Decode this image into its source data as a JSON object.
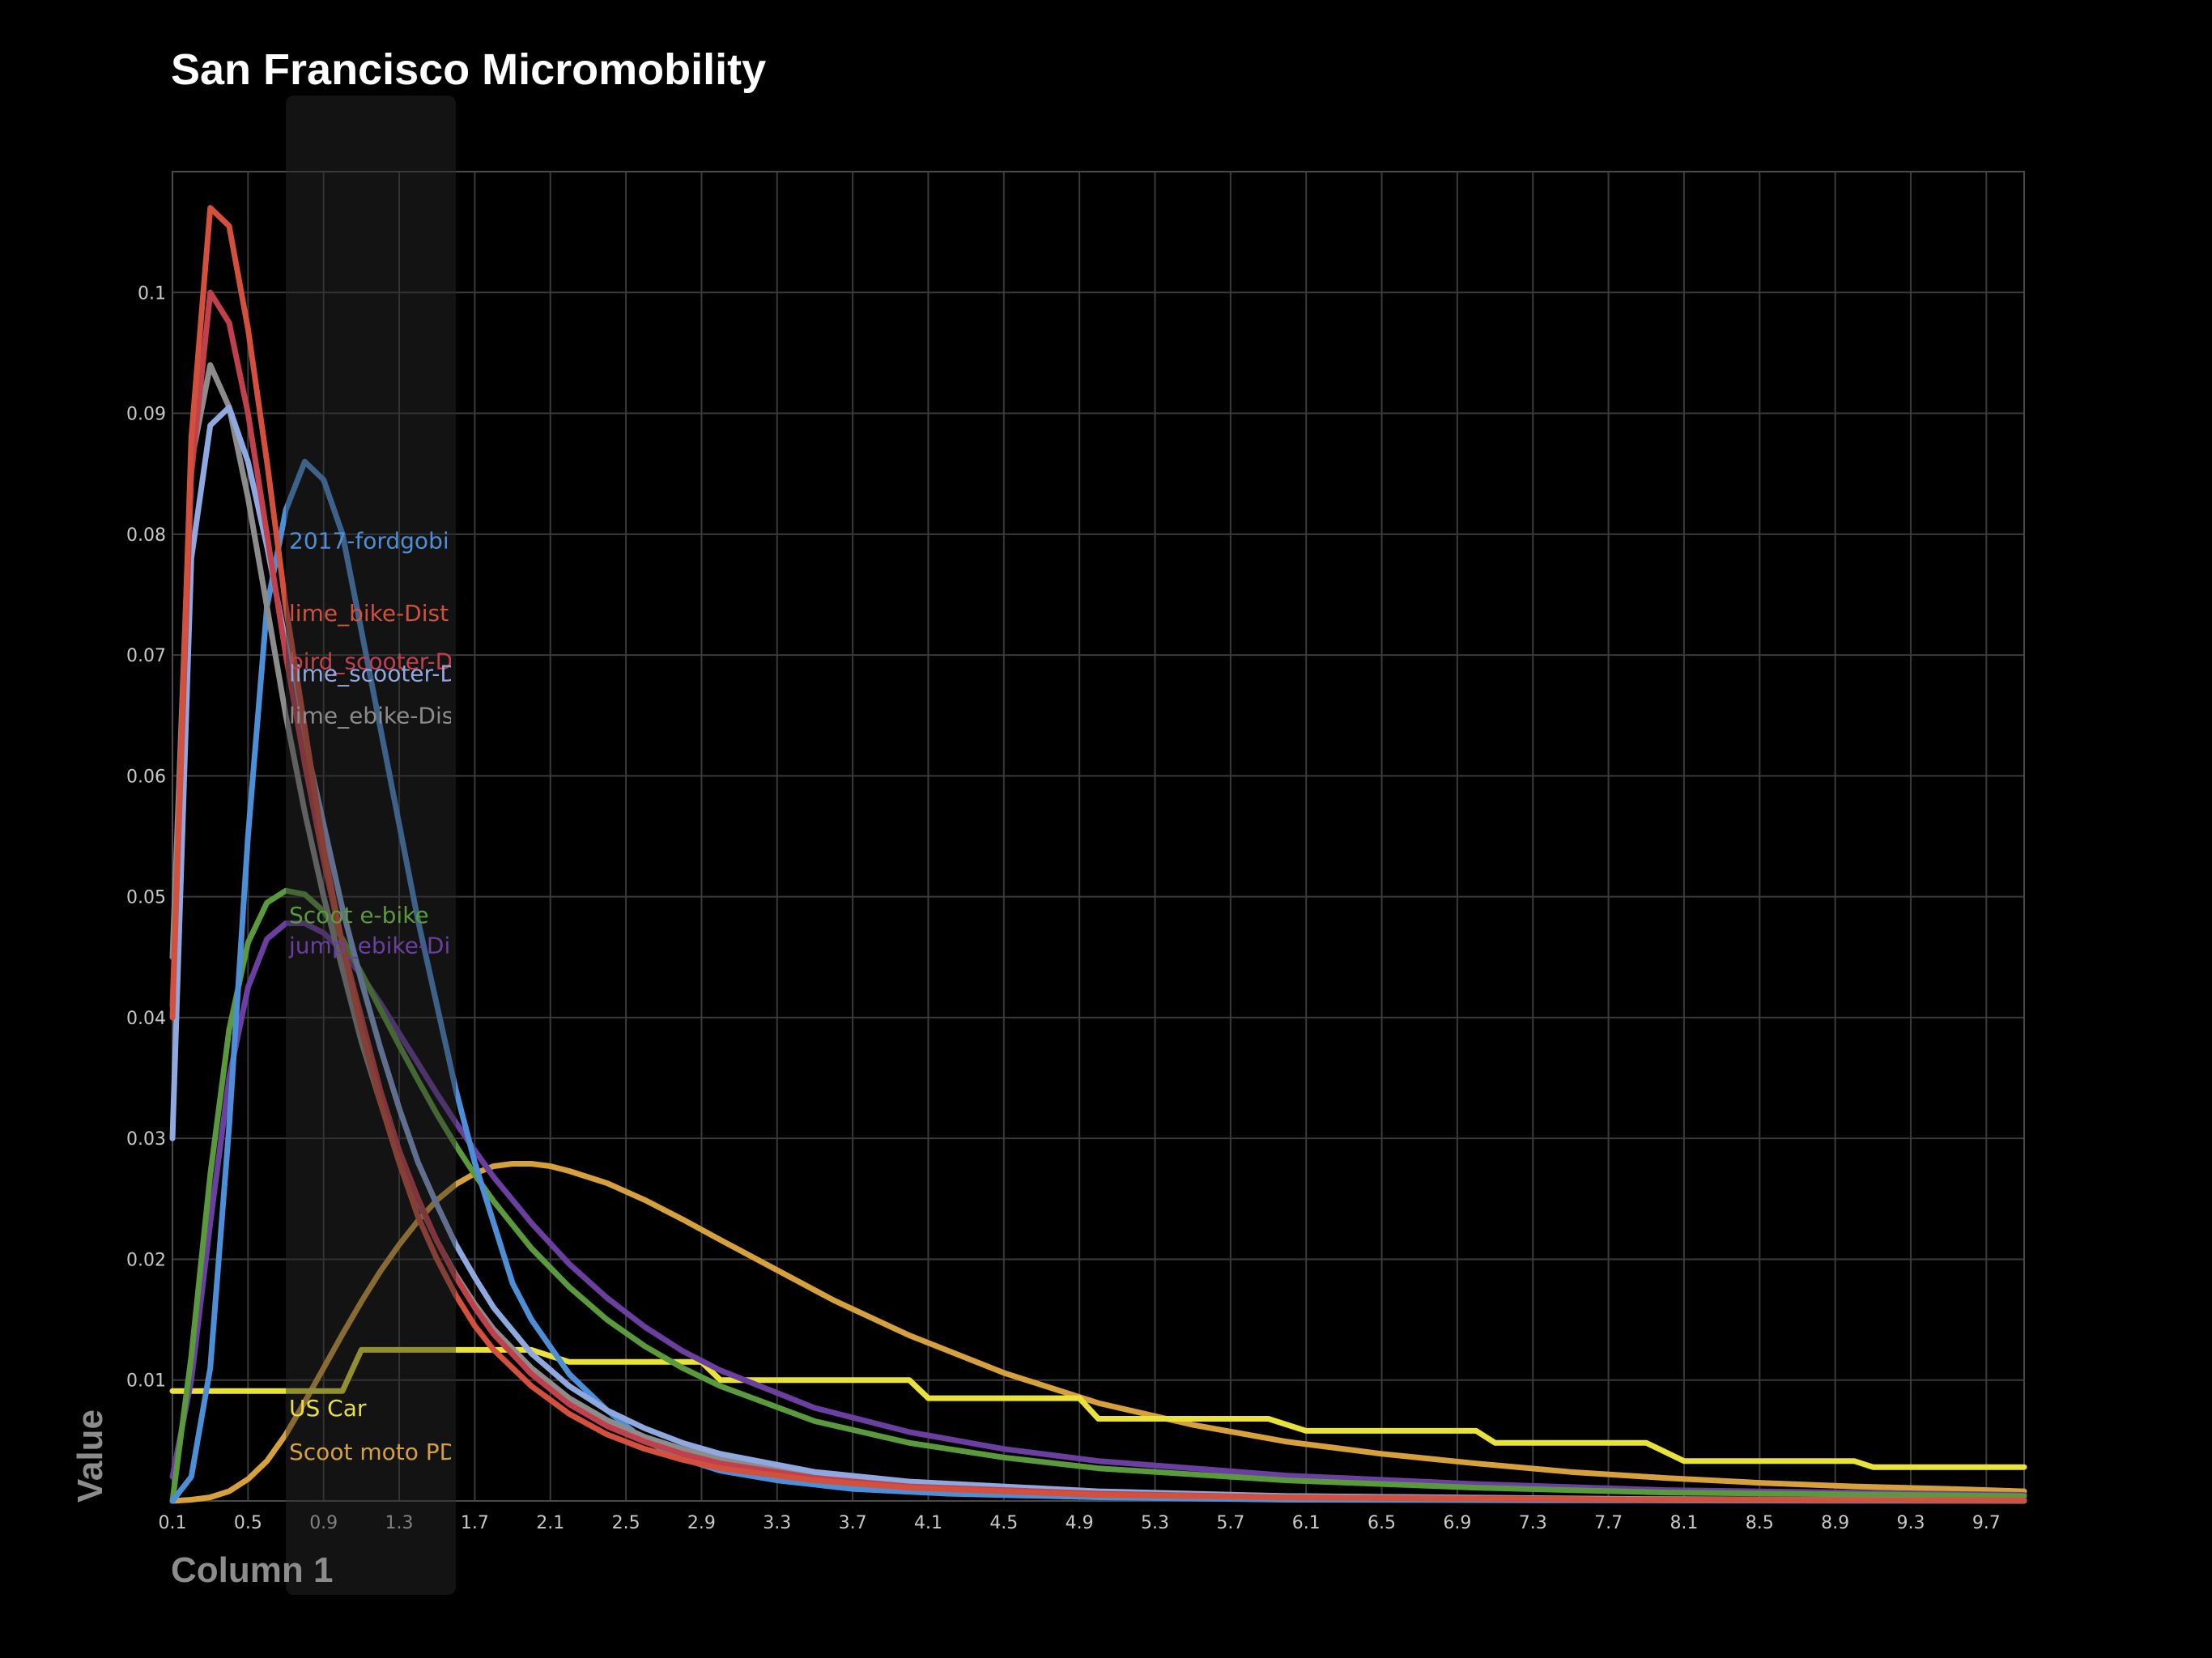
{
  "chart_data": {
    "type": "line",
    "title": "San Francisco Micromobility",
    "xlabel": "Column 1",
    "ylabel": "Value",
    "xlim": [
      0.1,
      9.9
    ],
    "ylim": [
      0,
      0.11
    ],
    "x_ticks": [
      "0.1",
      "0.5",
      "0.9",
      "1.3",
      "1.7",
      "2.1",
      "2.5",
      "2.9",
      "3.3",
      "3.7",
      "4.1",
      "4.5",
      "4.9",
      "5.3",
      "5.7",
      "6.1",
      "6.5",
      "6.9",
      "7.3",
      "7.7",
      "8.1",
      "8.5",
      "8.9",
      "9.3",
      "9.7"
    ],
    "y_ticks": [
      "0.01",
      "0.02",
      "0.03",
      "0.04",
      "0.05",
      "0.06",
      "0.07",
      "0.08",
      "0.09",
      "0.1"
    ],
    "grid": true,
    "hover_band": {
      "x_start": 0.7,
      "x_end": 1.6
    },
    "series": [
      {
        "name": "2017-fordgobi",
        "label_text": "2017-fordgobi",
        "color": "#4d8fd6",
        "label_y": 0.0795,
        "points": [
          [
            0.1,
            0.0
          ],
          [
            0.2,
            0.002
          ],
          [
            0.3,
            0.011
          ],
          [
            0.4,
            0.031
          ],
          [
            0.5,
            0.055
          ],
          [
            0.6,
            0.074
          ],
          [
            0.7,
            0.082
          ],
          [
            0.8,
            0.086
          ],
          [
            0.9,
            0.0845
          ],
          [
            1.0,
            0.08
          ],
          [
            1.1,
            0.072
          ],
          [
            1.2,
            0.064
          ],
          [
            1.3,
            0.056
          ],
          [
            1.4,
            0.048
          ],
          [
            1.5,
            0.041
          ],
          [
            1.6,
            0.034
          ],
          [
            1.7,
            0.028
          ],
          [
            1.8,
            0.023
          ],
          [
            1.9,
            0.018
          ],
          [
            2.0,
            0.015
          ],
          [
            2.2,
            0.0105
          ],
          [
            2.4,
            0.0075
          ],
          [
            2.6,
            0.005
          ],
          [
            2.8,
            0.0035
          ],
          [
            3.0,
            0.0025
          ],
          [
            3.3,
            0.0017
          ],
          [
            3.7,
            0.001
          ],
          [
            4.2,
            0.0006
          ],
          [
            5.0,
            0.0003
          ],
          [
            6.0,
            0.0001
          ],
          [
            7.5,
            5e-05
          ],
          [
            9.9,
            0.0
          ]
        ]
      },
      {
        "name": "lime_bike-Dist",
        "label_text": "lime_bike-Dist",
        "color": "#d2503c",
        "label_y": 0.0735,
        "points": [
          [
            0.1,
            0.04
          ],
          [
            0.2,
            0.088
          ],
          [
            0.3,
            0.107
          ],
          [
            0.4,
            0.1055
          ],
          [
            0.5,
            0.097
          ],
          [
            0.6,
            0.086
          ],
          [
            0.7,
            0.074
          ],
          [
            0.8,
            0.064
          ],
          [
            0.9,
            0.054
          ],
          [
            1.0,
            0.046
          ],
          [
            1.1,
            0.039
          ],
          [
            1.2,
            0.033
          ],
          [
            1.3,
            0.028
          ],
          [
            1.4,
            0.0235
          ],
          [
            1.5,
            0.02
          ],
          [
            1.6,
            0.017
          ],
          [
            1.7,
            0.0145
          ],
          [
            1.8,
            0.0125
          ],
          [
            2.0,
            0.0095
          ],
          [
            2.2,
            0.0072
          ],
          [
            2.4,
            0.0055
          ],
          [
            2.6,
            0.0043
          ],
          [
            2.8,
            0.0034
          ],
          [
            3.0,
            0.0027
          ],
          [
            3.5,
            0.0017
          ],
          [
            4.0,
            0.0011
          ],
          [
            5.0,
            0.0005
          ],
          [
            6.0,
            0.0003
          ],
          [
            8.0,
            0.0001
          ],
          [
            9.9,
            5e-05
          ]
        ]
      },
      {
        "name": "bird_scooter-Dist",
        "label_text": "bird_scooter-Dist",
        "color": "#c0414b",
        "label_y": 0.0695,
        "points": [
          [
            0.1,
            0.041
          ],
          [
            0.2,
            0.085
          ],
          [
            0.3,
            0.1
          ],
          [
            0.4,
            0.0975
          ],
          [
            0.5,
            0.09
          ],
          [
            0.6,
            0.08
          ],
          [
            0.7,
            0.07
          ],
          [
            0.8,
            0.061
          ],
          [
            0.9,
            0.053
          ],
          [
            1.0,
            0.046
          ],
          [
            1.1,
            0.04
          ],
          [
            1.2,
            0.034
          ],
          [
            1.3,
            0.029
          ],
          [
            1.4,
            0.025
          ],
          [
            1.5,
            0.0215
          ],
          [
            1.6,
            0.0185
          ],
          [
            1.7,
            0.016
          ],
          [
            1.8,
            0.0138
          ],
          [
            2.0,
            0.0105
          ],
          [
            2.2,
            0.008
          ],
          [
            2.4,
            0.0062
          ],
          [
            2.6,
            0.0049
          ],
          [
            2.8,
            0.0039
          ],
          [
            3.0,
            0.0031
          ],
          [
            3.5,
            0.0019
          ],
          [
            4.0,
            0.0012
          ],
          [
            5.0,
            0.0006
          ],
          [
            6.0,
            0.0003
          ],
          [
            8.0,
            0.0001
          ],
          [
            9.9,
            5e-05
          ]
        ]
      },
      {
        "name": "lime_scooter-Dist",
        "label_text": "lime_scooter-Dist",
        "color": "#8fa8e0",
        "label_y": 0.0685,
        "points": [
          [
            0.1,
            0.03
          ],
          [
            0.2,
            0.078
          ],
          [
            0.3,
            0.089
          ],
          [
            0.4,
            0.0905
          ],
          [
            0.5,
            0.086
          ],
          [
            0.6,
            0.079
          ],
          [
            0.7,
            0.071
          ],
          [
            0.8,
            0.063
          ],
          [
            0.9,
            0.056
          ],
          [
            1.0,
            0.049
          ],
          [
            1.1,
            0.043
          ],
          [
            1.2,
            0.0375
          ],
          [
            1.3,
            0.0325
          ],
          [
            1.4,
            0.028
          ],
          [
            1.5,
            0.0245
          ],
          [
            1.6,
            0.0212
          ],
          [
            1.7,
            0.0185
          ],
          [
            1.8,
            0.016
          ],
          [
            2.0,
            0.0122
          ],
          [
            2.2,
            0.0095
          ],
          [
            2.4,
            0.0075
          ],
          [
            2.6,
            0.006
          ],
          [
            2.8,
            0.0048
          ],
          [
            3.0,
            0.0039
          ],
          [
            3.5,
            0.0024
          ],
          [
            4.0,
            0.0016
          ],
          [
            5.0,
            0.0008
          ],
          [
            6.0,
            0.0004
          ],
          [
            8.0,
            0.00015
          ],
          [
            9.9,
            5e-05
          ]
        ]
      },
      {
        "name": "lime_ebike-Dist",
        "label_text": "lime_ebike-Dist",
        "color": "#8c8c8c",
        "label_y": 0.065,
        "points": [
          [
            0.1,
            0.045
          ],
          [
            0.2,
            0.086
          ],
          [
            0.3,
            0.094
          ],
          [
            0.4,
            0.0905
          ],
          [
            0.5,
            0.083
          ],
          [
            0.6,
            0.074
          ],
          [
            0.7,
            0.065
          ],
          [
            0.8,
            0.057
          ],
          [
            0.9,
            0.05
          ],
          [
            1.0,
            0.044
          ],
          [
            1.1,
            0.038
          ],
          [
            1.2,
            0.033
          ],
          [
            1.3,
            0.0285
          ],
          [
            1.4,
            0.0248
          ],
          [
            1.5,
            0.0215
          ],
          [
            1.6,
            0.0187
          ],
          [
            1.7,
            0.0163
          ],
          [
            1.8,
            0.0142
          ],
          [
            2.0,
            0.011
          ],
          [
            2.2,
            0.0085
          ],
          [
            2.4,
            0.0067
          ],
          [
            2.6,
            0.0053
          ],
          [
            2.8,
            0.0043
          ],
          [
            3.0,
            0.0035
          ],
          [
            3.5,
            0.0022
          ],
          [
            4.0,
            0.0014
          ],
          [
            5.0,
            0.0007
          ],
          [
            6.0,
            0.0004
          ],
          [
            8.0,
            0.00012
          ],
          [
            9.9,
            5e-05
          ]
        ]
      },
      {
        "name": "Scoot e-bike",
        "label_text": "Scoot e-bike",
        "color": "#5a9a3c",
        "label_y": 0.0485,
        "points": [
          [
            0.1,
            0.0
          ],
          [
            0.2,
            0.012
          ],
          [
            0.3,
            0.027
          ],
          [
            0.4,
            0.039
          ],
          [
            0.5,
            0.0462
          ],
          [
            0.6,
            0.0495
          ],
          [
            0.7,
            0.0505
          ],
          [
            0.8,
            0.0502
          ],
          [
            0.9,
            0.0488
          ],
          [
            1.0,
            0.0465
          ],
          [
            1.1,
            0.0437
          ],
          [
            1.2,
            0.0407
          ],
          [
            1.3,
            0.0377
          ],
          [
            1.4,
            0.0348
          ],
          [
            1.5,
            0.032
          ],
          [
            1.6,
            0.0294
          ],
          [
            1.7,
            0.027
          ],
          [
            1.8,
            0.0248
          ],
          [
            2.0,
            0.0209
          ],
          [
            2.2,
            0.0177
          ],
          [
            2.4,
            0.015
          ],
          [
            2.6,
            0.0128
          ],
          [
            2.8,
            0.011
          ],
          [
            3.0,
            0.0095
          ],
          [
            3.5,
            0.0066
          ],
          [
            4.0,
            0.0048
          ],
          [
            4.5,
            0.0036
          ],
          [
            5.0,
            0.0027
          ],
          [
            6.0,
            0.0017
          ],
          [
            7.0,
            0.0011
          ],
          [
            8.0,
            0.0007
          ],
          [
            9.9,
            0.0004
          ]
        ]
      },
      {
        "name": "jump_ebike-Dist",
        "label_text": "jump_ebike-Dist",
        "color": "#6a3fa0",
        "label_y": 0.046,
        "points": [
          [
            0.1,
            0.002
          ],
          [
            0.2,
            0.01
          ],
          [
            0.3,
            0.023
          ],
          [
            0.4,
            0.035
          ],
          [
            0.5,
            0.0425
          ],
          [
            0.6,
            0.0465
          ],
          [
            0.7,
            0.0478
          ],
          [
            0.8,
            0.0478
          ],
          [
            0.9,
            0.047
          ],
          [
            1.0,
            0.0455
          ],
          [
            1.1,
            0.0435
          ],
          [
            1.2,
            0.0412
          ],
          [
            1.3,
            0.0387
          ],
          [
            1.4,
            0.0362
          ],
          [
            1.5,
            0.0337
          ],
          [
            1.6,
            0.0313
          ],
          [
            1.7,
            0.029
          ],
          [
            1.8,
            0.0268
          ],
          [
            2.0,
            0.023
          ],
          [
            2.2,
            0.0196
          ],
          [
            2.4,
            0.0168
          ],
          [
            2.6,
            0.0144
          ],
          [
            2.8,
            0.0124
          ],
          [
            3.0,
            0.0108
          ],
          [
            3.5,
            0.0077
          ],
          [
            4.0,
            0.0057
          ],
          [
            4.5,
            0.0043
          ],
          [
            5.0,
            0.0033
          ],
          [
            6.0,
            0.0021
          ],
          [
            7.0,
            0.0014
          ],
          [
            8.0,
            0.0009
          ],
          [
            9.9,
            0.0005
          ]
        ]
      },
      {
        "name": "US Car",
        "label_text": "US Car",
        "color": "#e8e23a",
        "label_y": 0.0077,
        "points": [
          [
            0.1,
            0.0091
          ],
          [
            0.9,
            0.0091
          ],
          [
            1.0,
            0.0091
          ],
          [
            1.1,
            0.0125
          ],
          [
            2.0,
            0.0125
          ],
          [
            2.1,
            0.012
          ],
          [
            2.2,
            0.0115
          ],
          [
            2.9,
            0.0115
          ],
          [
            3.0,
            0.01
          ],
          [
            3.9,
            0.01
          ],
          [
            4.0,
            0.01
          ],
          [
            4.1,
            0.0085
          ],
          [
            4.8,
            0.0085
          ],
          [
            4.9,
            0.0085
          ],
          [
            5.0,
            0.0068
          ],
          [
            5.9,
            0.0068
          ],
          [
            6.1,
            0.0058
          ],
          [
            7.0,
            0.0058
          ],
          [
            7.1,
            0.0048
          ],
          [
            7.9,
            0.0048
          ],
          [
            8.1,
            0.0033
          ],
          [
            9.0,
            0.0033
          ],
          [
            9.1,
            0.0028
          ],
          [
            9.9,
            0.0028
          ]
        ]
      },
      {
        "name": "Scoot moto PD",
        "label_text": "Scoot moto PD",
        "color": "#d6a03c",
        "label_y": 0.0041,
        "points": [
          [
            0.1,
            0.0
          ],
          [
            0.2,
            0.0001
          ],
          [
            0.3,
            0.0003
          ],
          [
            0.4,
            0.0008
          ],
          [
            0.5,
            0.0018
          ],
          [
            0.6,
            0.0033
          ],
          [
            0.7,
            0.0055
          ],
          [
            0.8,
            0.0082
          ],
          [
            0.9,
            0.011
          ],
          [
            1.0,
            0.0138
          ],
          [
            1.1,
            0.0165
          ],
          [
            1.2,
            0.019
          ],
          [
            1.3,
            0.0212
          ],
          [
            1.4,
            0.0232
          ],
          [
            1.5,
            0.0249
          ],
          [
            1.6,
            0.0262
          ],
          [
            1.7,
            0.0271
          ],
          [
            1.8,
            0.0277
          ],
          [
            1.9,
            0.0279
          ],
          [
            2.0,
            0.0279
          ],
          [
            2.1,
            0.0277
          ],
          [
            2.2,
            0.0273
          ],
          [
            2.4,
            0.0263
          ],
          [
            2.6,
            0.0249
          ],
          [
            2.8,
            0.0233
          ],
          [
            3.0,
            0.0216
          ],
          [
            3.3,
            0.0191
          ],
          [
            3.6,
            0.0166
          ],
          [
            4.0,
            0.0137
          ],
          [
            4.5,
            0.0106
          ],
          [
            5.0,
            0.0081
          ],
          [
            5.5,
            0.0063
          ],
          [
            6.0,
            0.0049
          ],
          [
            6.5,
            0.0039
          ],
          [
            7.0,
            0.0031
          ],
          [
            7.5,
            0.0024
          ],
          [
            8.0,
            0.0019
          ],
          [
            8.5,
            0.0015
          ],
          [
            9.0,
            0.0012
          ],
          [
            9.5,
            0.001
          ],
          [
            9.9,
            0.0008
          ]
        ]
      }
    ]
  }
}
